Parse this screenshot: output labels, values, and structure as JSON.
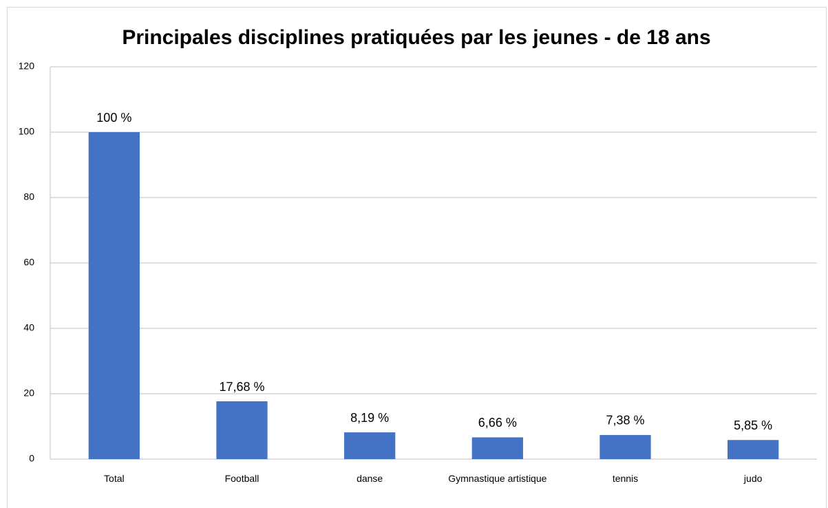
{
  "chart_data": {
    "type": "bar",
    "title": "Principales disciplines pratiquées par les jeunes - de 18 ans",
    "categories": [
      "Total",
      "Football",
      "danse",
      "Gymnastique artistique",
      "tennis",
      "judo"
    ],
    "values": [
      100,
      17.68,
      8.19,
      6.66,
      7.38,
      5.85
    ],
    "value_labels": [
      "100 %",
      "17,68 %",
      "8,19 %",
      "6,66 %",
      "7,38 %",
      "5,85 %"
    ],
    "color": "#4472c4",
    "ylim": [
      0,
      120
    ],
    "yticks": [
      0,
      20,
      40,
      60,
      80,
      100,
      120
    ],
    "grid": true
  }
}
